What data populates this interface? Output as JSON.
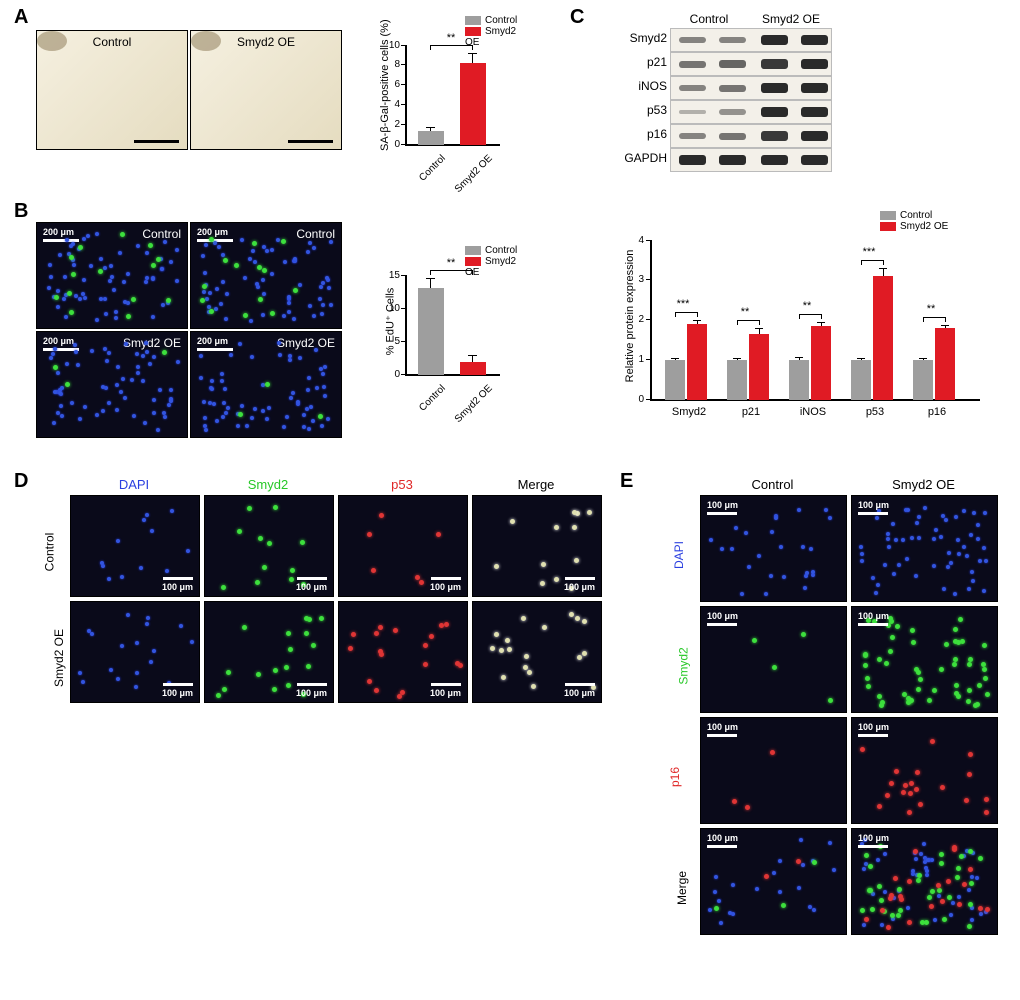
{
  "panels": {
    "A": "A",
    "B": "B",
    "C": "C",
    "D": "D",
    "E": "E"
  },
  "groups": {
    "control": "Control",
    "oe": "Smyd2 OE"
  },
  "scalebars": {
    "s200": "200 μm",
    "s100": "100 μm"
  },
  "colors": {
    "control_bar": "#9e9e9e",
    "oe_bar": "#e01b24",
    "axis": "#000000",
    "blue": "#2a3fe0",
    "green": "#28c828",
    "red": "#e02828",
    "black": "#000000"
  },
  "A_chart": {
    "type": "bar",
    "ylabel": "SA-β-Gal-positive cells (%)",
    "categories": [
      "Control",
      "Smyd2 OE"
    ],
    "values": [
      1.4,
      8.2
    ],
    "sem": [
      0.3,
      1.0
    ],
    "colors": [
      "#9e9e9e",
      "#e01b24"
    ],
    "ylim": [
      0,
      10
    ],
    "ytick_step": 2,
    "sig": "**",
    "bar_width": 0.55
  },
  "B_chart": {
    "type": "bar",
    "ylabel": "% EdU⁺ Cells",
    "categories": [
      "Control",
      "Smyd2 OE"
    ],
    "values": [
      13,
      2
    ],
    "sem": [
      1.5,
      1.0
    ],
    "colors": [
      "#9e9e9e",
      "#e01b24"
    ],
    "ylim": [
      0,
      15
    ],
    "ytick_step": 5,
    "sig": "**",
    "bar_width": 0.55
  },
  "C_blot": {
    "col_headers": [
      "Control",
      "Smyd2 OE"
    ],
    "rows": [
      "Smyd2",
      "p21",
      "iNOS",
      "p53",
      "p16",
      "GAPDH"
    ],
    "lane_count": 4,
    "band_intensity": [
      [
        0.4,
        0.4,
        1.0,
        1.0
      ],
      [
        0.5,
        0.6,
        0.9,
        1.0
      ],
      [
        0.4,
        0.5,
        1.0,
        1.0
      ],
      [
        0.1,
        0.3,
        1.0,
        1.0
      ],
      [
        0.4,
        0.5,
        0.9,
        1.0
      ],
      [
        1.0,
        1.0,
        1.0,
        1.0
      ]
    ]
  },
  "C_chart": {
    "type": "grouped-bar",
    "ylabel": "Relative protein expression",
    "proteins": [
      "Smyd2",
      "p21",
      "iNOS",
      "p53",
      "p16"
    ],
    "control": [
      1.0,
      1.0,
      1.0,
      1.0,
      1.0
    ],
    "oe": [
      1.9,
      1.65,
      1.85,
      3.1,
      1.8
    ],
    "sem_control": [
      0.05,
      0.05,
      0.08,
      0.05,
      0.05
    ],
    "sem_oe": [
      0.1,
      0.15,
      0.1,
      0.2,
      0.08
    ],
    "ylim": [
      0,
      4
    ],
    "ytick_step": 1,
    "sig": [
      "***",
      "**",
      "**",
      "***",
      "**"
    ],
    "colors": {
      "control": "#9e9e9e",
      "oe": "#e01b24"
    }
  },
  "D_panel": {
    "col_labels": [
      "DAPI",
      "Smyd2",
      "p53",
      "Merge"
    ],
    "col_colors": [
      "#2a3fe0",
      "#28c828",
      "#e02828",
      "#000000"
    ],
    "row_labels": [
      "Control",
      "Smyd2 OE"
    ],
    "scalebar": "100 μm"
  },
  "E_panel": {
    "col_labels": [
      "Control",
      "Smyd2 OE"
    ],
    "row_labels": [
      "DAPI",
      "Smyd2",
      "p16",
      "Merge"
    ],
    "row_colors": [
      "#2a3fe0",
      "#28c828",
      "#e02828",
      "#000000"
    ],
    "scalebar": "100 μm"
  }
}
